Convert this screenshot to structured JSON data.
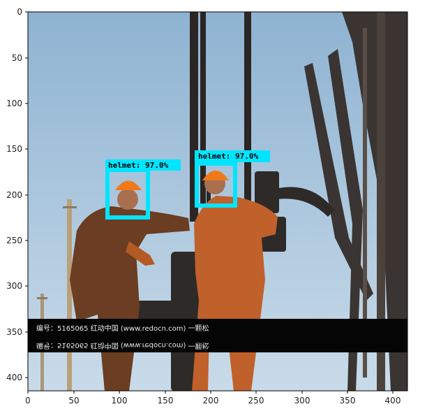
{
  "axes": {
    "x_ticks": [
      "0",
      "50",
      "100",
      "150",
      "200",
      "250",
      "300",
      "350",
      "400"
    ],
    "y_ticks": [
      "0",
      "50",
      "100",
      "150",
      "200",
      "250",
      "300",
      "350",
      "400"
    ]
  },
  "detections": [
    {
      "label": "helmet: 97.0%"
    },
    {
      "label": "helmet: 97.0%"
    }
  ],
  "watermark": {
    "text": "编号：5165065    红动中国 (www.redocn.com)    一颗松",
    "mirror_text": "编号：5165065    红动中国 (www.redocn.com)    一颗松"
  },
  "colors": {
    "box": "#00e5ff",
    "sky_top": "#8fb4d3",
    "sky_bottom": "#c4d8e8"
  }
}
